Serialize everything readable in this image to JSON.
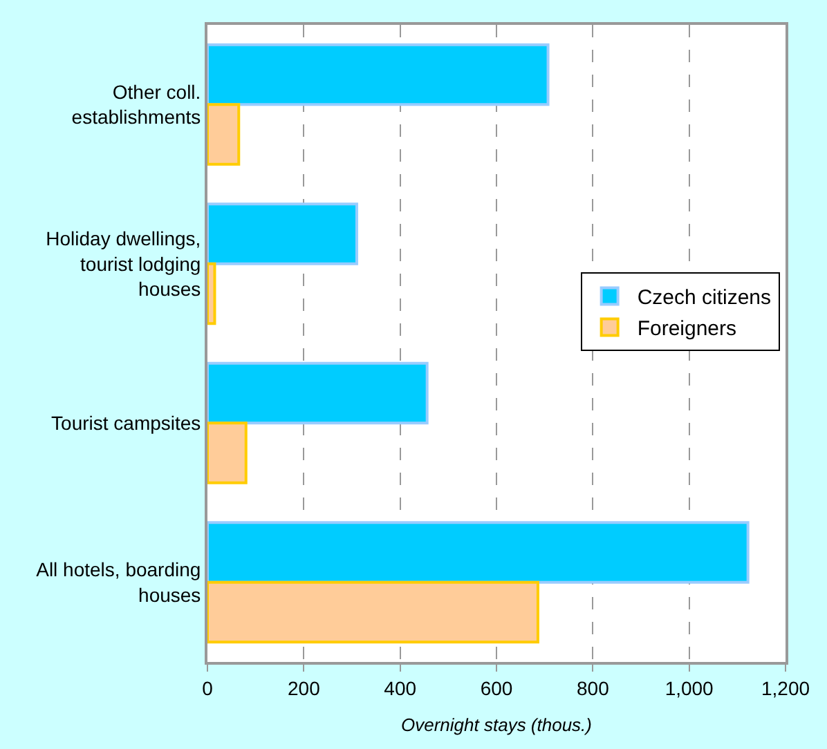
{
  "chart_data": {
    "type": "bar",
    "orientation": "horizontal",
    "xlabel": "Overnight stays (thous.)",
    "categories": [
      "Other coll.\nestablishments",
      "Holiday dwellings,\ntourist lodging\nhouses",
      "Tourist campsites",
      "All hotels, boarding\nhouses"
    ],
    "series": [
      {
        "name": "Czech citizens",
        "color": "#00ccff",
        "values": [
          707,
          310,
          456,
          1122
        ]
      },
      {
        "name": "Foreigners",
        "color": "#ffcc99",
        "values": [
          65,
          15,
          80,
          686
        ]
      }
    ],
    "xlim": [
      0,
      1200
    ],
    "xticks": [
      0,
      200,
      400,
      600,
      800,
      {
        "value": 1000,
        "label": "1,000"
      },
      {
        "value": 1200,
        "label": "1,200"
      }
    ],
    "grid": "x",
    "legend": "right"
  }
}
